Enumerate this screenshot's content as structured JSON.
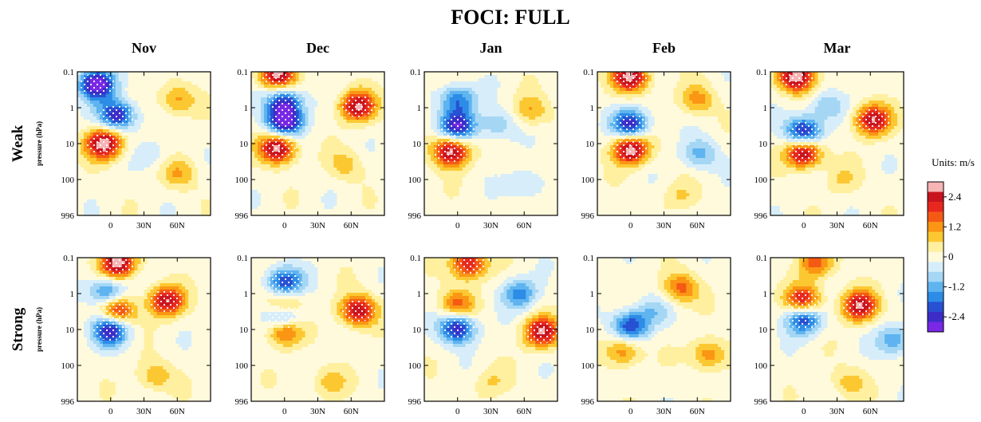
{
  "title": "FOCI: FULL",
  "columns": [
    "Nov",
    "Dec",
    "Jan",
    "Feb",
    "Mar"
  ],
  "rows": [
    "Weak",
    "Strong"
  ],
  "ylabel": "pressure (hPa)",
  "yticks": [
    "0.1",
    "1",
    "10",
    "100",
    "996"
  ],
  "xticks": [
    "0",
    "30N",
    "60N"
  ],
  "colorbar": {
    "title": "Units: m/s",
    "ticks": [
      "2.4",
      "1.2",
      "0",
      "-1.2",
      "-2.4"
    ],
    "colors": [
      "#f7b4b4",
      "#c8141e",
      "#e8281e",
      "#f55a14",
      "#fa9614",
      "#fcc832",
      "#fff0a0",
      "#fffadc",
      "#d7eefa",
      "#a5d7f5",
      "#5fb4f0",
      "#2d8ce6",
      "#2850d2",
      "#3c2dc8",
      "#7828e6"
    ]
  },
  "chart_data": {
    "type": "heatmap",
    "title": "FOCI: FULL",
    "ylabel": "pressure (hPa)",
    "yscale": "log",
    "y_ticks": [
      0.1,
      1,
      10,
      100,
      996
    ],
    "x_ticks": [
      "0",
      "30N",
      "60N"
    ],
    "value_range": [
      -3,
      3
    ],
    "units": "m/s",
    "panels": [
      {
        "row": "Weak",
        "month": "Nov",
        "features": [
          {
            "lat": -12,
            "p": 0.22,
            "v": -3.2
          },
          {
            "lat": 6,
            "p": 1.6,
            "v": -2.6
          },
          {
            "lat": -6,
            "p": 10,
            "v": 3.0
          },
          {
            "lat": 60,
            "p": 0.6,
            "v": 1.2
          },
          {
            "lat": 62,
            "p": 70,
            "v": 1.0
          },
          {
            "lat": 40,
            "p": 20,
            "v": -0.5
          }
        ]
      },
      {
        "row": "Weak",
        "month": "Dec",
        "features": [
          {
            "lat": -6,
            "p": 0.12,
            "v": 2.8
          },
          {
            "lat": 0,
            "p": 0.7,
            "v": -2.4
          },
          {
            "lat": 0,
            "p": 2.6,
            "v": -3.0
          },
          {
            "lat": -6,
            "p": 13,
            "v": 3.0
          },
          {
            "lat": 66,
            "p": 0.9,
            "v": 2.6
          },
          {
            "lat": 55,
            "p": 40,
            "v": 0.8
          }
        ]
      },
      {
        "row": "Weak",
        "month": "Jan",
        "features": [
          {
            "lat": 0,
            "p": 0.6,
            "v": -1.8
          },
          {
            "lat": 0,
            "p": 3.4,
            "v": -2.6
          },
          {
            "lat": -6,
            "p": 16,
            "v": 3.0
          },
          {
            "lat": 36,
            "p": 3.0,
            "v": -1.0
          },
          {
            "lat": 66,
            "p": 1.2,
            "v": 1.0
          },
          {
            "lat": 62,
            "p": 140,
            "v": -0.8
          }
        ]
      },
      {
        "row": "Weak",
        "month": "Feb",
        "features": [
          {
            "lat": 0,
            "p": 0.14,
            "v": 2.8
          },
          {
            "lat": 0,
            "p": 3.0,
            "v": -2.6
          },
          {
            "lat": 0,
            "p": 14,
            "v": 3.0
          },
          {
            "lat": 60,
            "p": 0.6,
            "v": 1.2
          },
          {
            "lat": 62,
            "p": 20,
            "v": -1.2
          },
          {
            "lat": 45,
            "p": 300,
            "v": 0.6
          }
        ]
      },
      {
        "row": "Weak",
        "month": "Mar",
        "features": [
          {
            "lat": -6,
            "p": 0.14,
            "v": 3.0
          },
          {
            "lat": 0,
            "p": 5.0,
            "v": -2.8
          },
          {
            "lat": 0,
            "p": 17,
            "v": 3.0
          },
          {
            "lat": 62,
            "p": 2.2,
            "v": 2.6
          },
          {
            "lat": 35,
            "p": 100,
            "v": 0.6
          },
          {
            "lat": 20,
            "p": 0.9,
            "v": -1.0
          }
        ]
      },
      {
        "row": "Strong",
        "month": "Nov",
        "features": [
          {
            "lat": 6,
            "p": 0.14,
            "v": 3.0
          },
          {
            "lat": -3,
            "p": 0.9,
            "v": -1.8
          },
          {
            "lat": 6,
            "p": 3.2,
            "v": 2.4
          },
          {
            "lat": 0,
            "p": 10,
            "v": -2.8
          },
          {
            "lat": 50,
            "p": 1.6,
            "v": 2.6
          },
          {
            "lat": 40,
            "p": 200,
            "v": 1.0
          }
        ]
      },
      {
        "row": "Strong",
        "month": "Dec",
        "features": [
          {
            "lat": 0,
            "p": 0.5,
            "v": -2.4
          },
          {
            "lat": 0,
            "p": 2.0,
            "v": 1.8
          },
          {
            "lat": 0,
            "p": 4.5,
            "v": -2.4
          },
          {
            "lat": 0,
            "p": 10,
            "v": 2.2
          },
          {
            "lat": 66,
            "p": 3.0,
            "v": 2.6
          },
          {
            "lat": 40,
            "p": 300,
            "v": 0.8
          }
        ]
      },
      {
        "row": "Strong",
        "month": "Jan",
        "features": [
          {
            "lat": 10,
            "p": 0.15,
            "v": 2.4
          },
          {
            "lat": 0,
            "p": 2.0,
            "v": 1.6
          },
          {
            "lat": 0,
            "p": 9.0,
            "v": -2.6
          },
          {
            "lat": 56,
            "p": 1.0,
            "v": -1.6
          },
          {
            "lat": 76,
            "p": 12,
            "v": 2.6
          },
          {
            "lat": 30,
            "p": 300,
            "v": 0.6
          }
        ]
      },
      {
        "row": "Strong",
        "month": "Feb",
        "features": [
          {
            "lat": 45,
            "p": 0.7,
            "v": 1.6
          },
          {
            "lat": 0,
            "p": 8,
            "v": -2.2
          },
          {
            "lat": -6,
            "p": 40,
            "v": 1.4
          },
          {
            "lat": 70,
            "p": 50,
            "v": 1.4
          },
          {
            "lat": 20,
            "p": 3.0,
            "v": -0.8
          }
        ]
      },
      {
        "row": "Strong",
        "month": "Mar",
        "features": [
          {
            "lat": 10,
            "p": 0.14,
            "v": 1.6
          },
          {
            "lat": 0,
            "p": 1.6,
            "v": 2.4
          },
          {
            "lat": 0,
            "p": 5.0,
            "v": -2.4
          },
          {
            "lat": 50,
            "p": 2.2,
            "v": 2.6
          },
          {
            "lat": 82,
            "p": 20,
            "v": -1.4
          },
          {
            "lat": 40,
            "p": 300,
            "v": 0.8
          }
        ]
      }
    ]
  }
}
